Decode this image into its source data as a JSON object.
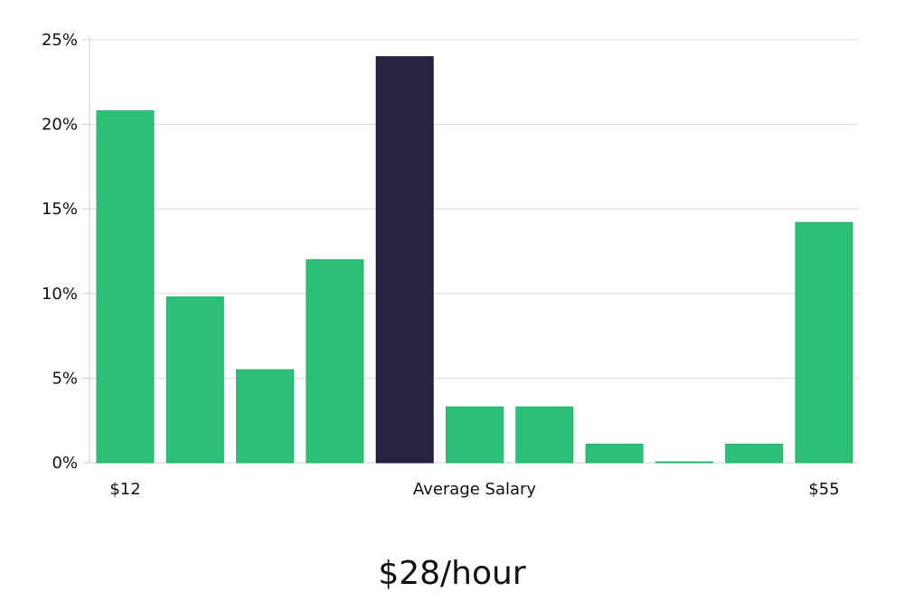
{
  "chart_data": {
    "type": "bar",
    "values": [
      20.8,
      9.8,
      5.5,
      12.0,
      24.0,
      3.3,
      3.3,
      1.1,
      0.05,
      1.1,
      14.2
    ],
    "highlight_index": 4,
    "x_tick_labels": [
      {
        "bar_index": 0,
        "label": "$12"
      },
      {
        "bar_index": 5,
        "label": "Average Salary"
      },
      {
        "bar_index": 10,
        "label": "$55"
      }
    ],
    "y_ticks": [
      "0%",
      "5%",
      "10%",
      "15%",
      "20%",
      "25%"
    ],
    "y_tick_values": [
      0,
      5,
      10,
      15,
      20,
      25
    ],
    "ylim": [
      0,
      25
    ],
    "grid": true,
    "colors": {
      "bar": "#2bbf77",
      "highlight": "#28243f",
      "grid": "#dcdcdc",
      "axis": "#cccccc",
      "text": "#111111"
    }
  },
  "headline": "$28/hour"
}
